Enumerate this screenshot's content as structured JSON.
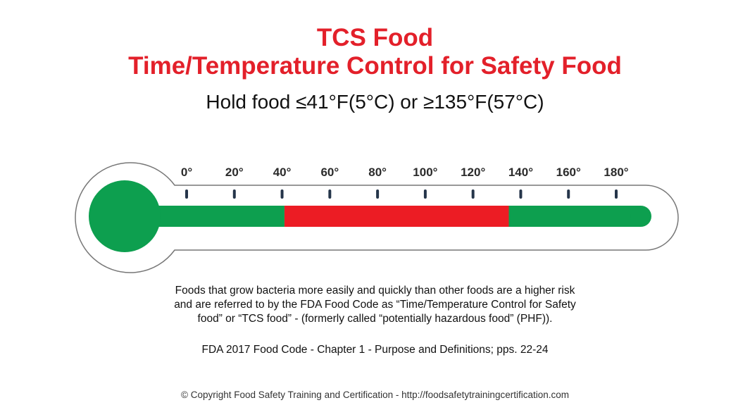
{
  "header": {
    "title_line1": "TCS Food",
    "title_line2": "Time/Temperature Control for Safety Food",
    "subtitle": "Hold food ≤41°F(5°C) or ≥135°F(57°C)"
  },
  "thermometer": {
    "scale_min": 0,
    "scale_max": 180,
    "ticks": [
      {
        "value": 0,
        "label": "0°"
      },
      {
        "value": 20,
        "label": "20°"
      },
      {
        "value": 40,
        "label": "40°"
      },
      {
        "value": 60,
        "label": "60°"
      },
      {
        "value": 80,
        "label": "80°"
      },
      {
        "value": 100,
        "label": "100°"
      },
      {
        "value": 120,
        "label": "120°"
      },
      {
        "value": 140,
        "label": "140°"
      },
      {
        "value": 160,
        "label": "160°"
      },
      {
        "value": 180,
        "label": "180°"
      }
    ],
    "zones": [
      {
        "name": "safe-cold",
        "from": 0,
        "to": 41,
        "color": "#0d9f4f"
      },
      {
        "name": "danger",
        "from": 41,
        "to": 135,
        "color": "#ec1c24"
      },
      {
        "name": "safe-hot",
        "from": 135,
        "to": 180,
        "color": "#0d9f4f"
      }
    ],
    "bulb_color": "#0d9f4f",
    "tick_color": "#25354a"
  },
  "description": {
    "line1": "Foods that grow bacteria more easily and quickly than other foods are a higher risk",
    "line2": "and are referred to by the FDA Food Code as “Time/Temperature Control for Safety",
    "line3": "food” or “TCS food” - (formerly called “potentially hazardous food” (PHF))."
  },
  "citation": "FDA 2017 Food Code - Chapter 1 - Purpose and Definitions; pps. 22-24",
  "copyright": "© Copyright Food Safety Training and Certification - http://foodsafetytrainingcertification.com"
}
